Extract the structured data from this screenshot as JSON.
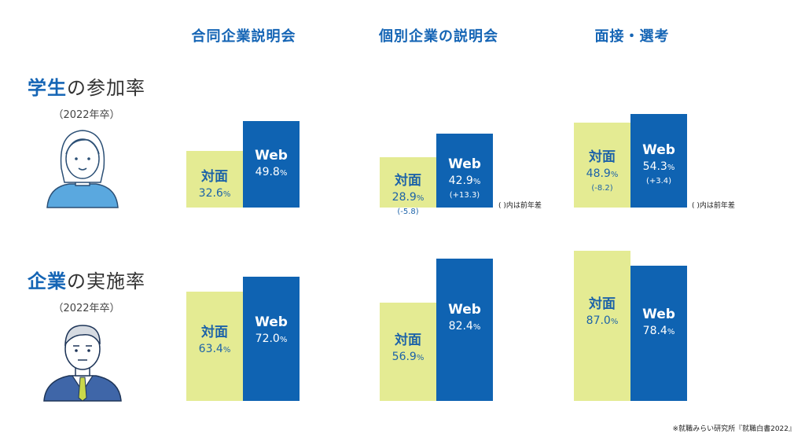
{
  "columns": [
    "合同企業説明会",
    "個別企業の説明会",
    "面接・選考"
  ],
  "rows": [
    {
      "title_hl": "学生",
      "title_rest": "の参加率",
      "sub": "（2022年卒）"
    },
    {
      "title_hl": "企業",
      "title_rest": "の実施率",
      "sub": "（2022年卒）"
    }
  ],
  "legend": {
    "inperson": "対面",
    "web": "Web"
  },
  "unit": "%",
  "note": "( )内は前年差",
  "source": "※就職みらい研究所『就職白書2022』",
  "colors": {
    "inperson": "#e4eb93",
    "web": "#0f63b2",
    "accent": "#1565b5"
  },
  "icons": {
    "student": "student-avatar-icon",
    "businessman": "businessman-avatar-icon"
  },
  "chart_data": [
    {
      "type": "bar",
      "row": "学生の参加率",
      "title": "合同企業説明会",
      "categories": [
        "対面",
        "Web"
      ],
      "values": [
        32.6,
        49.8
      ],
      "value_text": [
        "32.6",
        "49.8"
      ],
      "diffs": [
        "",
        ""
      ]
    },
    {
      "type": "bar",
      "row": "学生の参加率",
      "title": "個別企業の説明会",
      "categories": [
        "対面",
        "Web"
      ],
      "values": [
        28.9,
        42.9
      ],
      "value_text": [
        "28.9",
        "42.9"
      ],
      "diffs": [
        "(-5.8)",
        "(+13.3)"
      ]
    },
    {
      "type": "bar",
      "row": "学生の参加率",
      "title": "面接・選考",
      "categories": [
        "対面",
        "Web"
      ],
      "values": [
        48.9,
        54.3
      ],
      "value_text": [
        "48.9",
        "54.3"
      ],
      "diffs": [
        "(-8.2)",
        "(+3.4)"
      ]
    },
    {
      "type": "bar",
      "row": "企業の実施率",
      "title": "合同企業説明会",
      "categories": [
        "対面",
        "Web"
      ],
      "values": [
        63.4,
        72.0
      ],
      "value_text": [
        "63.4",
        "72.0"
      ],
      "diffs": [
        "",
        ""
      ]
    },
    {
      "type": "bar",
      "row": "企業の実施率",
      "title": "個別企業の説明会",
      "categories": [
        "対面",
        "Web"
      ],
      "values": [
        56.9,
        82.4
      ],
      "value_text": [
        "56.9",
        "82.4"
      ],
      "diffs": [
        "",
        ""
      ]
    },
    {
      "type": "bar",
      "row": "企業の実施率",
      "title": "面接・選考",
      "categories": [
        "対面",
        "Web"
      ],
      "values": [
        87.0,
        78.4
      ],
      "value_text": [
        "87.0",
        "78.4"
      ],
      "diffs": [
        "",
        ""
      ]
    }
  ]
}
